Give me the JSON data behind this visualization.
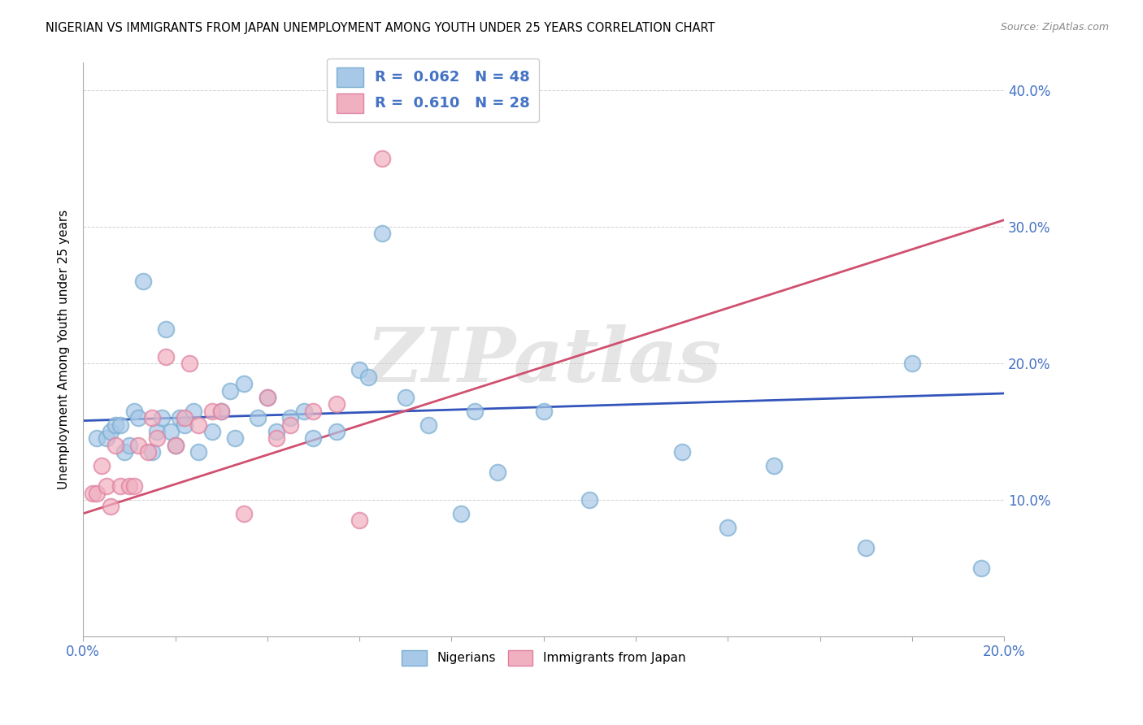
{
  "title": "NIGERIAN VS IMMIGRANTS FROM JAPAN UNEMPLOYMENT AMONG YOUTH UNDER 25 YEARS CORRELATION CHART",
  "source": "Source: ZipAtlas.com",
  "ylabel": "Unemployment Among Youth under 25 years",
  "watermark": "ZIPatlas",
  "blue_color": "#a8c8e8",
  "pink_color": "#f0b0c0",
  "blue_edge_color": "#7aaed0",
  "pink_edge_color": "#e080a0",
  "blue_line_color": "#3355bb",
  "pink_line_color": "#d05070",
  "blue_scatter_x": [
    0.3,
    0.5,
    0.6,
    0.7,
    0.8,
    0.9,
    1.0,
    1.1,
    1.2,
    1.3,
    1.5,
    1.6,
    1.7,
    1.8,
    1.9,
    2.0,
    2.1,
    2.2,
    2.4,
    2.5,
    2.8,
    3.0,
    3.2,
    3.3,
    3.5,
    3.8,
    4.0,
    4.2,
    4.5,
    4.8,
    5.0,
    5.5,
    6.0,
    6.2,
    6.5,
    7.0,
    7.5,
    8.2,
    8.5,
    9.0,
    10.0,
    11.0,
    13.0,
    14.0,
    15.0,
    17.0,
    18.0,
    19.5
  ],
  "blue_scatter_y": [
    14.5,
    14.5,
    15.0,
    15.5,
    15.5,
    13.5,
    14.0,
    16.5,
    16.0,
    26.0,
    13.5,
    15.0,
    16.0,
    22.5,
    15.0,
    14.0,
    16.0,
    15.5,
    16.5,
    13.5,
    15.0,
    16.5,
    18.0,
    14.5,
    18.5,
    16.0,
    17.5,
    15.0,
    16.0,
    16.5,
    14.5,
    15.0,
    19.5,
    19.0,
    29.5,
    17.5,
    15.5,
    9.0,
    16.5,
    12.0,
    16.5,
    10.0,
    13.5,
    8.0,
    12.5,
    6.5,
    20.0,
    5.0
  ],
  "pink_scatter_x": [
    0.2,
    0.3,
    0.4,
    0.5,
    0.6,
    0.7,
    0.8,
    1.0,
    1.1,
    1.2,
    1.4,
    1.5,
    1.6,
    1.8,
    2.0,
    2.2,
    2.3,
    2.5,
    2.8,
    3.0,
    3.5,
    4.0,
    4.2,
    4.5,
    5.0,
    5.5,
    6.0,
    6.5
  ],
  "pink_scatter_y": [
    10.5,
    10.5,
    12.5,
    11.0,
    9.5,
    14.0,
    11.0,
    11.0,
    11.0,
    14.0,
    13.5,
    16.0,
    14.5,
    20.5,
    14.0,
    16.0,
    20.0,
    15.5,
    16.5,
    16.5,
    9.0,
    17.5,
    14.5,
    15.5,
    16.5,
    17.0,
    8.5,
    35.0
  ],
  "xlim": [
    0.0,
    20.0
  ],
  "ylim": [
    0.0,
    42.0
  ],
  "blue_line_x": [
    0.0,
    20.0
  ],
  "blue_line_y": [
    15.8,
    17.8
  ],
  "pink_line_x": [
    0.0,
    20.0
  ],
  "pink_line_y": [
    9.0,
    30.5
  ],
  "ytick_positions": [
    0,
    10,
    20,
    30,
    40
  ],
  "ytick_labels": [
    "",
    "10.0%",
    "20.0%",
    "30.0%",
    "40.0%"
  ],
  "xtick_left_label": "0.0%",
  "xtick_right_label": "20.0%"
}
